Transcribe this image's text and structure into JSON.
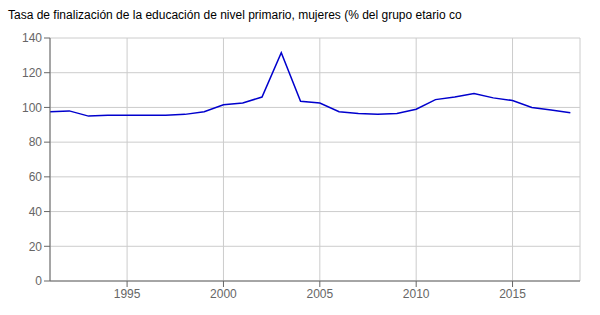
{
  "chart_data": {
    "type": "line",
    "title": "Tasa de finalización de la educación de nivel primario, mujeres (% del grupo etario co",
    "x": [
      1991,
      1992,
      1993,
      1994,
      1995,
      1996,
      1997,
      1998,
      1999,
      2000,
      2001,
      2002,
      2003,
      2004,
      2005,
      2006,
      2007,
      2008,
      2009,
      2010,
      2011,
      2012,
      2013,
      2014,
      2015,
      2016,
      2017,
      2018
    ],
    "values": [
      97.5,
      98.0,
      95.0,
      95.5,
      95.5,
      95.5,
      95.5,
      96.0,
      97.5,
      101.5,
      102.5,
      106.0,
      131.5,
      103.5,
      102.5,
      97.5,
      96.5,
      96.0,
      96.5,
      99.0,
      104.5,
      106.0,
      108.0,
      105.5,
      104.0,
      100.0,
      98.5,
      97.0
    ],
    "color": "#0000CD",
    "xlim": [
      1991,
      2018.5
    ],
    "ylim": [
      0,
      140
    ],
    "xticks": [
      1995,
      2000,
      2005,
      2010,
      2015
    ],
    "yticks": [
      0,
      20,
      40,
      60,
      80,
      100,
      120,
      140
    ],
    "grid": true
  }
}
